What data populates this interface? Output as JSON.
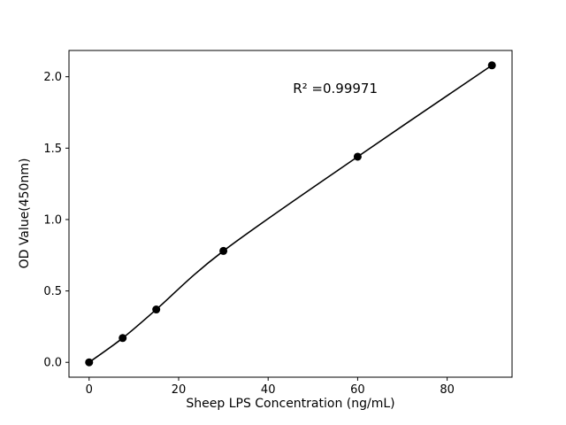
{
  "chart_data": {
    "type": "scatter",
    "title": "",
    "xlabel": "Sheep LPS Concentration (ng/mL)",
    "ylabel": "OD Value(450nm)",
    "x": [
      0,
      7.5,
      15,
      30,
      60,
      90
    ],
    "y": [
      0.0,
      0.17,
      0.37,
      0.78,
      1.44,
      2.08
    ],
    "annotation": {
      "text": "R² =0.99971",
      "x": 55,
      "y": 1.92
    },
    "xlim": [
      -4.5,
      94.5
    ],
    "ylim": [
      -0.104,
      2.184
    ],
    "xticks": [
      0,
      20,
      40,
      60,
      80
    ],
    "xtick_labels": [
      "0",
      "20",
      "40",
      "60",
      "80"
    ],
    "yticks": [
      0.0,
      0.5,
      1.0,
      1.5,
      2.0
    ],
    "ytick_labels": [
      "0.0",
      "0.5",
      "1.0",
      "1.5",
      "2.0"
    ],
    "line": {
      "color": "#000000",
      "width": 1.6,
      "smooth": true
    },
    "marker": {
      "color": "#000000",
      "radius": 4.5
    },
    "grid": false,
    "legend": null
  }
}
